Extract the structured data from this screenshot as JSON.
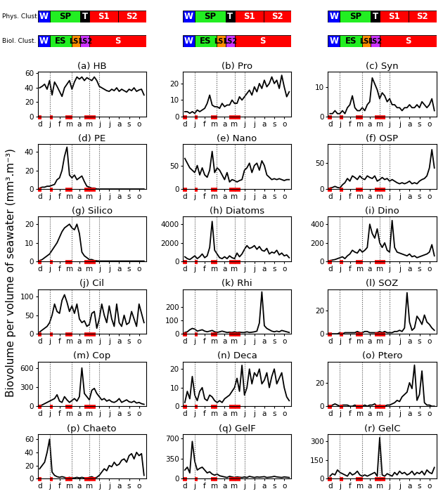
{
  "y_label": "Biovolume per volume of seawater (mm³.m⁻³)",
  "clusters": [
    {
      "label": "Phys. Clust",
      "segments": [
        {
          "name": "W",
          "start": -0.2,
          "end": 1.0,
          "color": "#0000ff"
        },
        {
          "name": "SP",
          "start": 1.0,
          "end": 4.1,
          "color": "#22ee22"
        },
        {
          "name": "T",
          "start": 4.1,
          "end": 5.0,
          "color": "#000000"
        },
        {
          "name": "S1",
          "start": 5.0,
          "end": 7.9,
          "color": "#ff0000"
        },
        {
          "name": "S2",
          "start": 7.9,
          "end": 10.7,
          "color": "#ff0000"
        }
      ]
    },
    {
      "label": "Biol. Clust.",
      "segments": [
        {
          "name": "W",
          "start": -0.2,
          "end": 1.0,
          "color": "#0000ff"
        },
        {
          "name": "ES",
          "start": 1.0,
          "end": 3.2,
          "color": "#22ee22"
        },
        {
          "name": "LS1",
          "start": 3.2,
          "end": 4.1,
          "color": "#ff8c00"
        },
        {
          "name": "LS2",
          "start": 4.1,
          "end": 5.0,
          "color": "#cc33ff"
        },
        {
          "name": "S",
          "start": 5.0,
          "end": 10.7,
          "color": "#ff0000"
        }
      ]
    }
  ],
  "x": [
    0,
    0.25,
    0.5,
    0.75,
    1,
    1.25,
    1.5,
    1.75,
    2,
    2.25,
    2.5,
    2.75,
    3,
    3.25,
    3.5,
    3.75,
    4,
    4.25,
    4.5,
    4.75,
    5,
    5.25,
    5.5,
    5.75,
    6,
    6.25,
    6.5,
    6.75,
    7,
    7.25,
    7.5,
    7.75,
    8,
    8.25,
    8.5,
    8.75,
    9,
    9.25,
    9.5,
    9.75,
    10,
    10.25,
    10.5
  ],
  "xlim": [
    -0.2,
    10.7
  ],
  "xticks": [
    {
      "value": 0,
      "label": "d"
    },
    {
      "value": 1,
      "label": "j"
    },
    {
      "value": 2,
      "label": "f"
    },
    {
      "value": 3,
      "label": "m"
    },
    {
      "value": 4,
      "label": "a"
    },
    {
      "value": 5,
      "label": "m"
    },
    {
      "value": 6,
      "label": "j"
    },
    {
      "value": 7,
      "label": "j"
    },
    {
      "value": 8,
      "label": "a"
    },
    {
      "value": 9,
      "label": "s"
    },
    {
      "value": 10,
      "label": "o"
    }
  ],
  "vlines": [
    1.0,
    3.2,
    5.0,
    6.0
  ],
  "red_periods": [
    [
      -0.2,
      0.2
    ],
    [
      1.0,
      1.3
    ],
    [
      2.6,
      3.3
    ],
    [
      4.5,
      5.6
    ]
  ],
  "chart_data": [
    {
      "type": "line",
      "title": "(a) HB",
      "color": "#000000",
      "ylim": [
        0,
        62
      ],
      "yticks": [
        0,
        20,
        40,
        60
      ],
      "values": [
        40,
        42,
        45,
        38,
        50,
        30,
        48,
        42,
        35,
        28,
        40,
        45,
        50,
        38,
        48,
        55,
        52,
        55,
        50,
        54,
        52,
        50,
        55,
        50,
        42,
        40,
        38,
        36,
        35,
        38,
        36,
        40,
        35,
        38,
        36,
        34,
        38,
        36,
        40,
        35,
        37,
        38,
        30
      ]
    },
    {
      "type": "line",
      "title": "(b) Pro",
      "color": "#000000",
      "ylim": [
        0,
        27
      ],
      "yticks": [
        0,
        10,
        20
      ],
      "values": [
        3,
        3,
        2,
        3,
        2,
        4,
        3,
        4,
        5,
        8,
        13,
        7,
        6,
        6,
        5,
        8,
        6,
        7,
        7,
        10,
        8,
        8,
        12,
        10,
        12,
        14,
        16,
        13,
        18,
        15,
        20,
        17,
        22,
        18,
        20,
        24,
        20,
        22,
        17,
        25,
        18,
        12,
        15
      ]
    },
    {
      "type": "line",
      "title": "(c) Syn",
      "color": "#000000",
      "ylim": [
        0,
        15
      ],
      "yticks": [
        0,
        10
      ],
      "values": [
        1,
        1,
        2,
        1,
        1,
        2,
        1,
        3,
        4,
        7,
        3,
        2,
        2,
        3,
        2,
        4,
        5,
        13,
        11,
        9,
        6,
        8,
        7,
        5,
        6,
        4,
        4,
        3,
        3,
        2,
        3,
        3,
        4,
        3,
        3,
        4,
        3,
        5,
        4,
        3,
        4,
        6,
        2
      ]
    },
    {
      "type": "line",
      "title": "(d) PE",
      "color": "#000000",
      "ylim": [
        0,
        48
      ],
      "yticks": [
        0,
        20,
        40
      ],
      "values": [
        1,
        2,
        2,
        3,
        3,
        4,
        5,
        10,
        12,
        20,
        35,
        45,
        15,
        12,
        15,
        10,
        12,
        14,
        8,
        3,
        2,
        1,
        1,
        0,
        0,
        0,
        0,
        0,
        0,
        0,
        0,
        0,
        0,
        0,
        0,
        0,
        0,
        0,
        0,
        0,
        0,
        0,
        0
      ]
    },
    {
      "type": "line",
      "title": "(e) Nano",
      "color": "#000000",
      "ylim": [
        0,
        95
      ],
      "yticks": [
        0,
        50
      ],
      "values": [
        65,
        55,
        45,
        40,
        35,
        50,
        30,
        45,
        30,
        25,
        40,
        80,
        35,
        45,
        40,
        30,
        20,
        35,
        15,
        20,
        18,
        15,
        18,
        20,
        40,
        45,
        55,
        35,
        50,
        55,
        40,
        60,
        50,
        30,
        25,
        20,
        22,
        20,
        22,
        20,
        18,
        20,
        20
      ]
    },
    {
      "type": "line",
      "title": "(f) OSP",
      "color": "#000000",
      "ylim": [
        0,
        85
      ],
      "yticks": [
        0,
        50
      ],
      "values": [
        2,
        3,
        5,
        3,
        2,
        8,
        12,
        20,
        15,
        25,
        22,
        18,
        25,
        20,
        18,
        25,
        22,
        20,
        25,
        15,
        18,
        22,
        18,
        20,
        15,
        18,
        15,
        12,
        10,
        12,
        10,
        12,
        15,
        10,
        12,
        10,
        15,
        18,
        20,
        25,
        40,
        75,
        40
      ]
    },
    {
      "type": "line",
      "title": "(g) Silico",
      "color": "#000000",
      "ylim": [
        0,
        24
      ],
      "yticks": [
        0,
        10,
        20
      ],
      "values": [
        0.5,
        1,
        2,
        3,
        4,
        6,
        8,
        10,
        13,
        16,
        18,
        19,
        20,
        18,
        17,
        20,
        15,
        5,
        3,
        2,
        1,
        1,
        0.5,
        0.3,
        0.2,
        0.2,
        0.2,
        0.2,
        0.2,
        0.2,
        0.2,
        0.2,
        0.2,
        0.2,
        0.2,
        0.2,
        0.2,
        0.2,
        0.2,
        0.2,
        0.2,
        0.2,
        0.2
      ]
    },
    {
      "type": "line",
      "title": "(h) Diatoms",
      "color": "#000000",
      "ylim": [
        0,
        4800
      ],
      "yticks": [
        0,
        2000,
        4000
      ],
      "values": [
        500,
        300,
        200,
        400,
        600,
        300,
        500,
        800,
        400,
        600,
        1500,
        4300,
        1200,
        800,
        400,
        300,
        500,
        300,
        600,
        400,
        300,
        900,
        500,
        800,
        1300,
        1700,
        1400,
        1500,
        1700,
        1300,
        1600,
        1200,
        1100,
        1400,
        800,
        1000,
        900,
        1200,
        700,
        900,
        600,
        700,
        400
      ]
    },
    {
      "type": "line",
      "title": "(i) Dino",
      "color": "#000000",
      "ylim": [
        0,
        480
      ],
      "yticks": [
        0,
        200,
        400
      ],
      "values": [
        10,
        15,
        20,
        30,
        40,
        50,
        30,
        60,
        80,
        120,
        100,
        90,
        130,
        100,
        120,
        150,
        400,
        300,
        250,
        350,
        200,
        150,
        200,
        120,
        100,
        440,
        150,
        100,
        90,
        80,
        70,
        60,
        80,
        50,
        60,
        40,
        50,
        60,
        70,
        80,
        100,
        180,
        60
      ]
    },
    {
      "type": "line",
      "title": "(j) Cil",
      "color": "#000000",
      "ylim": [
        0,
        120
      ],
      "yticks": [
        0,
        50,
        100
      ],
      "values": [
        5,
        10,
        15,
        20,
        30,
        50,
        80,
        60,
        55,
        90,
        105,
        85,
        60,
        75,
        55,
        80,
        40,
        30,
        35,
        20,
        25,
        55,
        60,
        15,
        40,
        80,
        50,
        30,
        75,
        40,
        20,
        80,
        30,
        20,
        50,
        25,
        30,
        60,
        40,
        20,
        80,
        55,
        30
      ]
    },
    {
      "type": "line",
      "title": "(k) Rhi",
      "color": "#000000",
      "ylim": [
        0,
        330
      ],
      "yticks": [
        0,
        100,
        200
      ],
      "values": [
        10,
        15,
        30,
        40,
        35,
        20,
        25,
        30,
        20,
        15,
        20,
        25,
        15,
        10,
        15,
        20,
        15,
        10,
        12,
        10,
        15,
        10,
        12,
        10,
        10,
        15,
        10,
        12,
        15,
        20,
        80,
        310,
        60,
        40,
        30,
        20,
        15,
        20,
        15,
        25,
        20,
        15,
        10
      ]
    },
    {
      "type": "line",
      "title": "(l) SOZ",
      "color": "#000000",
      "ylim": [
        0,
        38
      ],
      "yticks": [
        0,
        20
      ],
      "values": [
        0,
        0,
        0,
        0,
        1,
        0,
        1,
        1,
        1,
        1,
        1,
        2,
        1,
        1,
        2,
        2,
        1,
        1,
        1,
        1,
        2,
        1,
        2,
        1,
        1,
        1,
        2,
        2,
        3,
        2,
        5,
        35,
        10,
        3,
        5,
        15,
        12,
        8,
        16,
        10,
        8,
        5,
        3
      ]
    },
    {
      "type": "line",
      "title": "(m) Cop",
      "color": "#000000",
      "ylim": [
        0,
        700
      ],
      "yticks": [
        0,
        300,
        600
      ],
      "values": [
        10,
        20,
        40,
        60,
        80,
        100,
        120,
        180,
        80,
        60,
        150,
        100,
        60,
        90,
        120,
        80,
        150,
        600,
        200,
        150,
        100,
        250,
        280,
        200,
        150,
        100,
        120,
        80,
        100,
        70,
        60,
        80,
        120,
        60,
        80,
        100,
        70,
        60,
        80,
        50,
        60,
        40,
        30
      ]
    },
    {
      "type": "line",
      "title": "(n) Deca",
      "color": "#000000",
      "ylim": [
        0,
        24
      ],
      "yticks": [
        0,
        10,
        20
      ],
      "values": [
        2,
        8,
        4,
        16,
        6,
        3,
        8,
        10,
        4,
        3,
        6,
        5,
        3,
        2,
        3,
        2,
        4,
        5,
        6,
        8,
        10,
        15,
        8,
        22,
        6,
        10,
        20,
        12,
        18,
        16,
        20,
        12,
        14,
        18,
        10,
        16,
        20,
        12,
        15,
        18,
        10,
        5,
        3
      ]
    },
    {
      "type": "line",
      "title": "(o) Ptero",
      "color": "#000000",
      "ylim": [
        0,
        38
      ],
      "yticks": [
        0,
        20
      ],
      "values": [
        0,
        1,
        2,
        1,
        0,
        1,
        1,
        1,
        0,
        0,
        1,
        0,
        0,
        0,
        1,
        0,
        1,
        1,
        2,
        0,
        1,
        0,
        0,
        1,
        1,
        2,
        3,
        5,
        4,
        8,
        10,
        12,
        20,
        15,
        35,
        5,
        10,
        30,
        3,
        1,
        1,
        0,
        0
      ]
    },
    {
      "type": "line",
      "title": "(p) Chaeto",
      "color": "#000000",
      "ylim": [
        0,
        68
      ],
      "yticks": [
        0,
        20,
        40,
        60
      ],
      "values": [
        15,
        20,
        25,
        40,
        60,
        10,
        5,
        3,
        2,
        3,
        2,
        1,
        2,
        1,
        1,
        2,
        1,
        2,
        1,
        1,
        2,
        3,
        1,
        2,
        5,
        10,
        15,
        12,
        20,
        18,
        25,
        20,
        22,
        28,
        30,
        25,
        35,
        38,
        30,
        40,
        35,
        38,
        5
      ]
    },
    {
      "type": "line",
      "title": "(q) GelF",
      "color": "#000000",
      "ylim": [
        0,
        780
      ],
      "yticks": [
        0,
        350,
        700
      ],
      "values": [
        150,
        200,
        100,
        650,
        300,
        150,
        180,
        200,
        150,
        100,
        120,
        80,
        60,
        80,
        50,
        40,
        30,
        20,
        40,
        30,
        20,
        30,
        25,
        20,
        30,
        20,
        40,
        30,
        20,
        30,
        25,
        30,
        35,
        20,
        25,
        30,
        40,
        30,
        25,
        20,
        30,
        25,
        20
      ]
    },
    {
      "type": "line",
      "title": "(r) GelC",
      "color": "#000000",
      "ylim": [
        0,
        360
      ],
      "yticks": [
        0,
        150,
        300
      ],
      "values": [
        20,
        40,
        30,
        70,
        50,
        40,
        30,
        20,
        50,
        30,
        40,
        60,
        30,
        20,
        30,
        20,
        30,
        40,
        50,
        20,
        330,
        30,
        20,
        40,
        30,
        20,
        50,
        30,
        60,
        40,
        50,
        30,
        40,
        60,
        30,
        50,
        40,
        60,
        30,
        70,
        50,
        40,
        90
      ]
    }
  ]
}
